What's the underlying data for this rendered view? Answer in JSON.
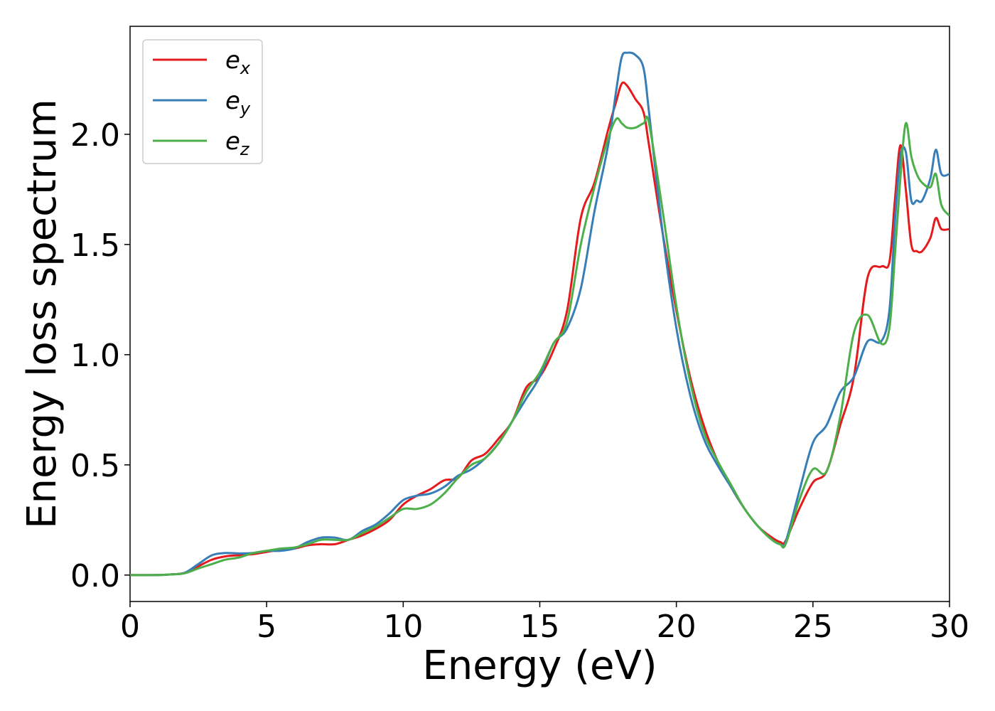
{
  "chart_data": {
    "type": "line",
    "title": "",
    "xlabel": "Energy (eV)",
    "ylabel": "Energy loss spectrum",
    "xlim": [
      0,
      30
    ],
    "ylim": [
      -0.12,
      2.49
    ],
    "xticks": [
      "0",
      "5",
      "10",
      "15",
      "20",
      "25",
      "30"
    ],
    "yticks": [
      "0.0",
      "0.5",
      "1.0",
      "1.5",
      "2.0"
    ],
    "grid": false,
    "legend_position": "top-left",
    "series": [
      {
        "name": "e",
        "subscript": "x",
        "color": "#e41a1c",
        "x": [
          0,
          1,
          1.5,
          2,
          2.5,
          3,
          3.5,
          4,
          4.5,
          5,
          5.5,
          6,
          6.5,
          7,
          7.5,
          8,
          8.5,
          9,
          9.5,
          10,
          10.5,
          11,
          11.5,
          12,
          12.5,
          13,
          13.5,
          14,
          14.5,
          15,
          15.5,
          16,
          16.5,
          17,
          17.5,
          17.8,
          18,
          18.2,
          18.5,
          18.8,
          19,
          19.5,
          20,
          20.5,
          21,
          21.5,
          22,
          22.5,
          23,
          23.5,
          23.8,
          24,
          24.5,
          25,
          25.5,
          26,
          26.5,
          27,
          27.5,
          27.8,
          28,
          28.2,
          28.4,
          28.6,
          28.8,
          29,
          29.3,
          29.5,
          29.7,
          30
        ],
        "values": [
          0,
          0,
          0.003,
          0.01,
          0.04,
          0.07,
          0.085,
          0.09,
          0.095,
          0.105,
          0.115,
          0.12,
          0.135,
          0.14,
          0.14,
          0.16,
          0.18,
          0.21,
          0.25,
          0.32,
          0.36,
          0.39,
          0.43,
          0.44,
          0.52,
          0.55,
          0.62,
          0.7,
          0.85,
          0.9,
          1.02,
          1.2,
          1.62,
          1.78,
          2.02,
          2.15,
          2.23,
          2.22,
          2.16,
          2.1,
          1.95,
          1.55,
          1.2,
          0.9,
          0.68,
          0.52,
          0.4,
          0.3,
          0.22,
          0.17,
          0.15,
          0.155,
          0.3,
          0.42,
          0.47,
          0.68,
          0.9,
          1.35,
          1.4,
          1.42,
          1.7,
          1.95,
          1.75,
          1.5,
          1.47,
          1.47,
          1.53,
          1.62,
          1.57,
          1.57
        ]
      },
      {
        "name": "e",
        "subscript": "y",
        "color": "#377eb8",
        "x": [
          0,
          1,
          1.5,
          2,
          2.5,
          3,
          3.5,
          4,
          4.5,
          5,
          5.5,
          6,
          6.5,
          7,
          7.5,
          8,
          8.5,
          9,
          9.5,
          10,
          10.5,
          11,
          11.5,
          12,
          12.5,
          13,
          13.5,
          14,
          14.5,
          15,
          15.5,
          16,
          16.5,
          17,
          17.5,
          17.8,
          18,
          18.2,
          18.5,
          18.8,
          19,
          19.5,
          20,
          20.5,
          21,
          21.5,
          22,
          22.5,
          23,
          23.5,
          23.8,
          24,
          24.5,
          25,
          25.5,
          26,
          26.5,
          27,
          27.5,
          27.8,
          28,
          28.2,
          28.4,
          28.6,
          28.8,
          29,
          29.3,
          29.5,
          29.7,
          30
        ],
        "values": [
          0,
          0,
          0.003,
          0.01,
          0.05,
          0.09,
          0.1,
          0.098,
          0.1,
          0.11,
          0.11,
          0.12,
          0.15,
          0.17,
          0.17,
          0.16,
          0.2,
          0.23,
          0.28,
          0.34,
          0.36,
          0.37,
          0.4,
          0.45,
          0.48,
          0.53,
          0.6,
          0.7,
          0.8,
          0.9,
          1.05,
          1.12,
          1.3,
          1.65,
          1.95,
          2.2,
          2.35,
          2.37,
          2.36,
          2.3,
          2.1,
          1.55,
          1.12,
          0.82,
          0.62,
          0.5,
          0.4,
          0.3,
          0.22,
          0.16,
          0.14,
          0.15,
          0.38,
          0.6,
          0.68,
          0.83,
          0.9,
          1.06,
          1.06,
          1.2,
          1.6,
          1.9,
          1.92,
          1.7,
          1.7,
          1.7,
          1.8,
          1.93,
          1.82,
          1.82
        ]
      },
      {
        "name": "e",
        "subscript": "z",
        "color": "#4daf4a",
        "x": [
          0,
          1,
          1.5,
          2,
          2.5,
          3,
          3.5,
          4,
          4.5,
          5,
          5.5,
          6,
          6.5,
          7,
          7.5,
          8,
          8.5,
          9,
          9.5,
          10,
          10.5,
          11,
          11.5,
          12,
          12.5,
          13,
          13.5,
          14,
          14.5,
          15,
          15.5,
          16,
          16.5,
          17,
          17.5,
          17.8,
          18,
          18.2,
          18.5,
          18.8,
          19,
          19.5,
          20,
          20.5,
          21,
          21.5,
          22,
          22.5,
          23,
          23.5,
          23.8,
          24,
          24.5,
          25,
          25.5,
          26,
          26.5,
          27,
          27.5,
          27.8,
          28,
          28.2,
          28.4,
          28.6,
          28.8,
          29,
          29.3,
          29.5,
          29.7,
          30
        ],
        "values": [
          0,
          0,
          0.003,
          0.008,
          0.03,
          0.05,
          0.07,
          0.08,
          0.1,
          0.11,
          0.12,
          0.125,
          0.14,
          0.16,
          0.16,
          0.16,
          0.19,
          0.22,
          0.26,
          0.3,
          0.3,
          0.32,
          0.37,
          0.44,
          0.5,
          0.53,
          0.6,
          0.7,
          0.83,
          0.92,
          1.05,
          1.15,
          1.5,
          1.76,
          1.98,
          2.07,
          2.05,
          2.03,
          2.03,
          2.05,
          2.05,
          1.65,
          1.22,
          0.88,
          0.65,
          0.52,
          0.41,
          0.3,
          0.22,
          0.16,
          0.14,
          0.14,
          0.34,
          0.48,
          0.47,
          0.72,
          1.1,
          1.18,
          1.05,
          1.12,
          1.45,
          1.8,
          2.05,
          1.9,
          1.82,
          1.78,
          1.76,
          1.82,
          1.68,
          1.63
        ]
      }
    ]
  }
}
